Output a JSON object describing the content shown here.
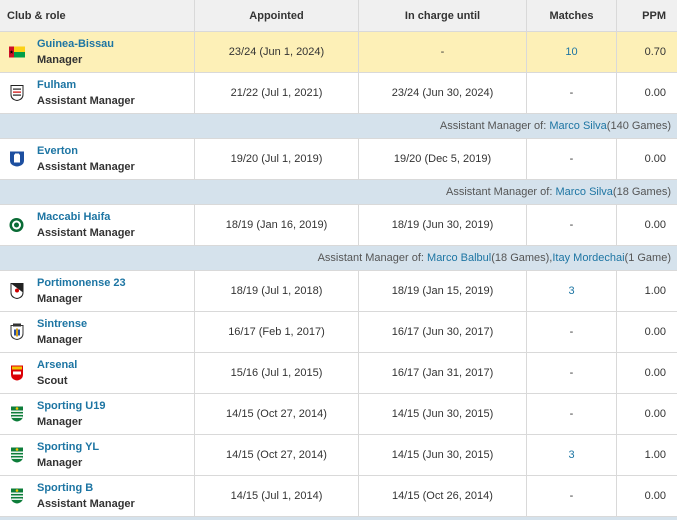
{
  "header": {
    "club_role": "Club & role",
    "appointed": "Appointed",
    "in_charge_until": "In charge until",
    "matches": "Matches",
    "ppm": "PPM"
  },
  "colors": {
    "highlight": "#fdf0b7",
    "section": "#d5e2ec",
    "link": "#1d75a3"
  },
  "rows": [
    {
      "club": "Guinea-Bissau",
      "role": "Manager",
      "appointed": "23/24 (Jun 1, 2024)",
      "until": "-",
      "matches": "10",
      "ppm": "0.70",
      "logo": "guinea-bissau-flag-icon"
    },
    {
      "club": "Fulham",
      "role": "Assistant Manager",
      "appointed": "21/22 (Jul 1, 2021)",
      "until": "23/24 (Jun 30, 2024)",
      "matches": "-",
      "ppm": "0.00",
      "logo": "fulham-crest-icon"
    },
    {
      "club": "Everton",
      "role": "Assistant Manager",
      "appointed": "19/20 (Jul 1, 2019)",
      "until": "19/20 (Dec 5, 2019)",
      "matches": "-",
      "ppm": "0.00",
      "logo": "everton-crest-icon"
    },
    {
      "club": "Maccabi Haifa",
      "role": "Assistant Manager",
      "appointed": "18/19 (Jan 16, 2019)",
      "until": "18/19 (Jun 30, 2019)",
      "matches": "-",
      "ppm": "0.00",
      "logo": "maccabi-haifa-crest-icon"
    },
    {
      "club": "Portimonense 23",
      "role": "Manager",
      "appointed": "18/19 (Jul 1, 2018)",
      "until": "18/19 (Jan 15, 2019)",
      "matches": "3",
      "ppm": "1.00",
      "logo": "portimonense-crest-icon"
    },
    {
      "club": "Sintrense",
      "role": "Manager",
      "appointed": "16/17 (Feb 1, 2017)",
      "until": "16/17 (Jun 30, 2017)",
      "matches": "-",
      "ppm": "0.00",
      "logo": "sintrense-crest-icon"
    },
    {
      "club": "Arsenal",
      "role": "Scout",
      "appointed": "15/16 (Jul 1, 2015)",
      "until": "16/17 (Jan 31, 2017)",
      "matches": "-",
      "ppm": "0.00",
      "logo": "arsenal-crest-icon"
    },
    {
      "club": "Sporting U19",
      "role": "Manager",
      "appointed": "14/15 (Oct 27, 2014)",
      "until": "14/15 (Jun 30, 2015)",
      "matches": "-",
      "ppm": "0.00",
      "logo": "sporting-crest-icon"
    },
    {
      "club": "Sporting YL",
      "role": "Manager",
      "appointed": "14/15 (Oct 27, 2014)",
      "until": "14/15 (Jun 30, 2015)",
      "matches": "3",
      "ppm": "1.00",
      "logo": "sporting-crest-icon"
    },
    {
      "club": "Sporting B",
      "role": "Assistant Manager",
      "appointed": "14/15 (Jul 1, 2014)",
      "until": "14/15 (Oct 26, 2014)",
      "matches": "-",
      "ppm": "0.00",
      "logo": "sporting-crest-icon"
    }
  ],
  "sections": [
    {
      "prefix": "Assistant Manager of: ",
      "link1": "Marco Silva",
      "mid": " (140 Games)",
      "link2": "",
      "suffix": ""
    },
    {
      "prefix": "Assistant Manager of: ",
      "link1": "Marco Silva",
      "mid": " (18 Games)",
      "link2": "",
      "suffix": ""
    },
    {
      "prefix": "Assistant Manager of: ",
      "link1": "Marco Balbul",
      "mid": " (18 Games), ",
      "link2": "Itay Mordechai",
      "suffix": " (1 Game)"
    }
  ]
}
